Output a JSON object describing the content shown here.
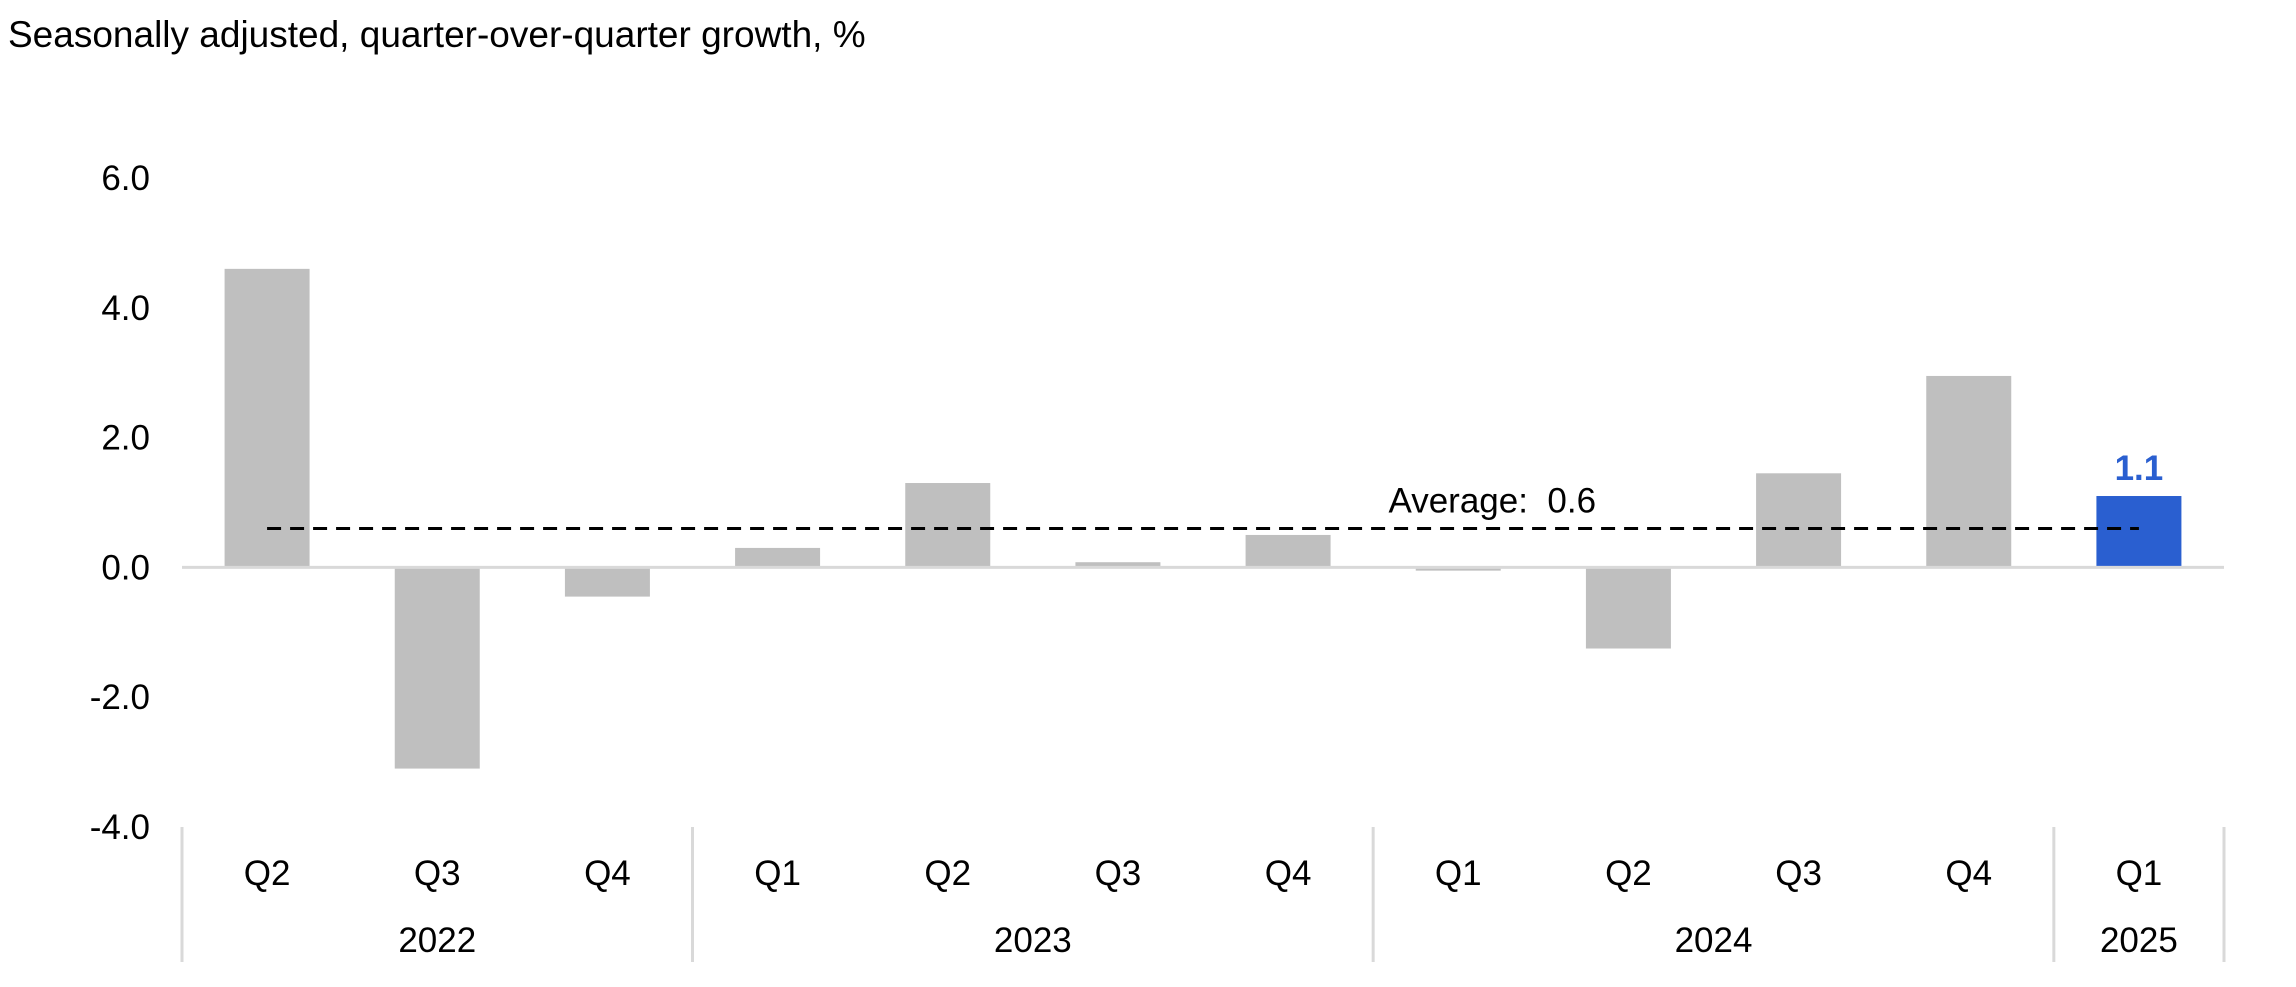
{
  "title": "Seasonally adjusted, quarter-over-quarter growth, %",
  "chart_data": {
    "type": "bar",
    "title": "Seasonally adjusted, quarter-over-quarter growth, %",
    "xlabel": "",
    "ylabel": "",
    "ylim": [
      -4.0,
      6.0
    ],
    "yticks": [
      "-4.0",
      "-2.0",
      "0.0",
      "2.0",
      "4.0",
      "6.0"
    ],
    "categories": [
      "Q2",
      "Q3",
      "Q4",
      "Q1",
      "Q2",
      "Q3",
      "Q4",
      "Q1",
      "Q2",
      "Q3",
      "Q4",
      "Q1"
    ],
    "years": [
      {
        "label": "2022",
        "count": 3
      },
      {
        "label": "2023",
        "count": 4
      },
      {
        "label": "2024",
        "count": 4
      },
      {
        "label": "2025",
        "count": 1
      }
    ],
    "values": [
      4.6,
      -3.1,
      -0.45,
      0.3,
      1.3,
      0.08,
      0.5,
      -0.05,
      -1.25,
      1.45,
      2.95,
      1.1
    ],
    "highlight_index": 11,
    "highlight_label": "1.1",
    "average": 0.6,
    "average_label": "Average:  0.6",
    "grid": false,
    "legend": "none",
    "colors": {
      "bar": "#bfbfbf",
      "highlight": "#2a5fd0",
      "zero_line": "#d9d9d9",
      "average_line": "#000000",
      "separator": "#d9d9d9"
    }
  }
}
